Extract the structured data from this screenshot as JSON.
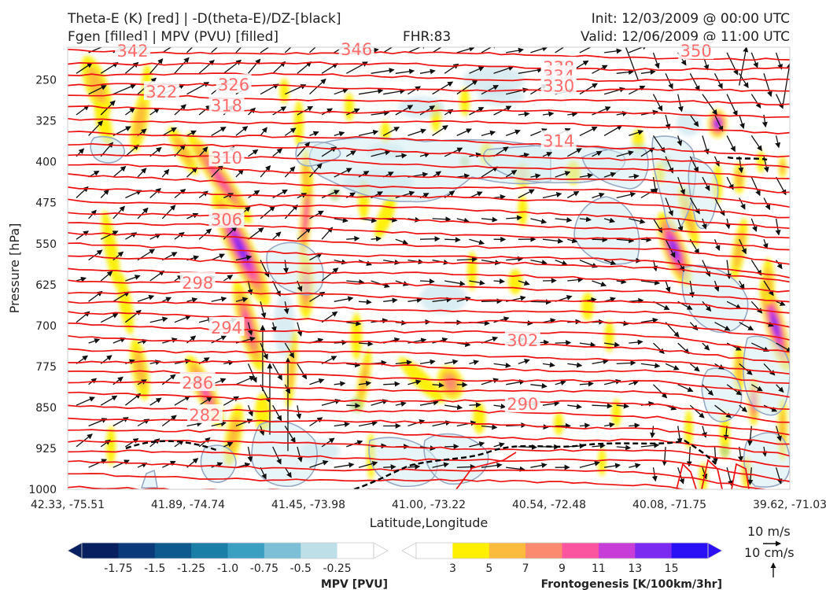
{
  "header": {
    "title_left_1": "Theta-E (K) [red] | -D(theta-E)/DZ-[black]",
    "title_left_2": "Fgen [filled] | MPV (PVU) [filled]",
    "fhr": "FHR:83",
    "init": "Init: 12/03/2009 @ 00:00 UTC",
    "valid": "Valid: 12/06/2009 @ 11:00 UTC"
  },
  "chart_data": {
    "type": "cross-section",
    "xlabel": "Latitude,Longitude",
    "ylabel": "Pressure [hPa]",
    "x_ticks": [
      "42.33, -75.51",
      "41.89, -74.74",
      "41.45, -73.98",
      "41.00, -73.22",
      "40.54, -72.48",
      "40.08, -71.75",
      "39.62, -71.03"
    ],
    "y_ticks": [
      250,
      325,
      400,
      475,
      550,
      625,
      700,
      775,
      850,
      925,
      1000
    ],
    "ylim": [
      1000,
      190
    ],
    "theta_e_labels": [
      {
        "value": "342",
        "x": 0.09,
        "p": 196
      },
      {
        "value": "346",
        "x": 0.4,
        "p": 193
      },
      {
        "value": "350",
        "x": 0.87,
        "p": 196
      },
      {
        "value": "338",
        "x": 0.68,
        "p": 226
      },
      {
        "value": "334",
        "x": 0.68,
        "p": 242
      },
      {
        "value": "330",
        "x": 0.68,
        "p": 260
      },
      {
        "value": "326",
        "x": 0.23,
        "p": 258
      },
      {
        "value": "322",
        "x": 0.13,
        "p": 271
      },
      {
        "value": "318",
        "x": 0.22,
        "p": 296
      },
      {
        "value": "314",
        "x": 0.68,
        "p": 361
      },
      {
        "value": "310",
        "x": 0.22,
        "p": 392
      },
      {
        "value": "306",
        "x": 0.22,
        "p": 505
      },
      {
        "value": "302",
        "x": 0.63,
        "p": 726
      },
      {
        "value": "298",
        "x": 0.18,
        "p": 621
      },
      {
        "value": "294",
        "x": 0.22,
        "p": 703
      },
      {
        "value": "290",
        "x": 0.63,
        "p": 843
      },
      {
        "value": "286",
        "x": 0.18,
        "p": 804
      },
      {
        "value": "282",
        "x": 0.19,
        "p": 863
      }
    ],
    "colorbars": [
      {
        "title": "MPV [PVU]",
        "levels": [
          "-1.75",
          "-1.5",
          "-1.25",
          "-1.0",
          "-0.75",
          "-0.5",
          "-0.25"
        ],
        "colors": [
          "#08205f",
          "#0a3a7a",
          "#0e5a8e",
          "#1a7fa6",
          "#3aa0c2",
          "#7cbfd6",
          "#bddfe8",
          "#ffffff"
        ]
      },
      {
        "title": "Frontogenesis [K/100km/3hr]",
        "levels": [
          "3",
          "5",
          "7",
          "9",
          "11",
          "13",
          "15"
        ],
        "colors": [
          "#ffffff",
          "#ffef00",
          "#fcbb3c",
          "#fb8a6e",
          "#fb55a0",
          "#c83cd8",
          "#7b2bf0",
          "#2c10f5"
        ]
      }
    ],
    "vector_keys": [
      "10 m/s",
      "10 cm/s"
    ],
    "colors": {
      "theta_e": "#ee1111",
      "stability": "#000000",
      "mpv_outline": "#97a9c4",
      "arrow": "#111111"
    }
  }
}
